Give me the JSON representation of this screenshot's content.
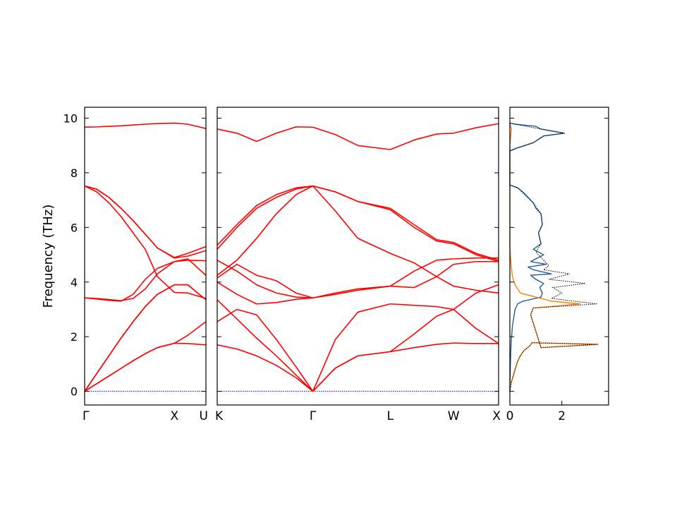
{
  "chart_data": [
    {
      "type": "line",
      "panel": "band-structure-left",
      "ylabel": "Frequency (THz)",
      "ylim": [
        -0.5,
        10.4
      ],
      "yticks": [
        0,
        2,
        4,
        6,
        8,
        10
      ],
      "xticks": [
        {
          "label": "Γ",
          "pos": 0
        },
        {
          "label": "X",
          "pos": 0.74
        },
        {
          "label": "U",
          "pos": 1.0
        }
      ],
      "line_color": "#ff0000",
      "zero_line_color": "#0000cc",
      "series": [
        {
          "x": [
            0,
            0.1,
            0.2,
            0.3,
            0.4,
            0.5,
            0.6,
            0.74,
            0.85,
            1.0
          ],
          "y": [
            0,
            0.28,
            0.56,
            0.84,
            1.12,
            1.38,
            1.6,
            1.76,
            1.75,
            1.7
          ]
        },
        {
          "x": [
            0,
            0.1,
            0.2,
            0.3,
            0.4,
            0.5,
            0.6,
            0.74,
            0.85,
            1.0
          ],
          "y": [
            0,
            0.28,
            0.56,
            0.84,
            1.12,
            1.38,
            1.6,
            1.76,
            2.05,
            2.55
          ]
        },
        {
          "x": [
            0,
            0.1,
            0.2,
            0.3,
            0.4,
            0.5,
            0.6,
            0.74,
            0.85,
            1.0
          ],
          "y": [
            0,
            0.65,
            1.3,
            1.95,
            2.55,
            3.1,
            3.55,
            3.9,
            3.9,
            3.35
          ]
        },
        {
          "x": [
            0,
            0.1,
            0.2,
            0.3,
            0.4,
            0.5,
            0.6,
            0.74,
            0.85,
            1.0
          ],
          "y": [
            0,
            0.65,
            1.3,
            1.95,
            2.55,
            3.1,
            3.55,
            3.9,
            3.9,
            3.35
          ]
        },
        {
          "x": [
            0,
            0.1,
            0.2,
            0.3,
            0.4,
            0.5,
            0.6,
            0.74,
            0.85,
            1.0
          ],
          "y": [
            3.42,
            3.38,
            3.33,
            3.3,
            3.55,
            4.1,
            4.5,
            4.75,
            4.8,
            4.78
          ]
        },
        {
          "x": [
            0,
            0.1,
            0.2,
            0.3,
            0.4,
            0.5,
            0.6,
            0.74,
            0.85,
            1.0
          ],
          "y": [
            3.42,
            3.4,
            3.36,
            3.32,
            3.4,
            3.75,
            4.3,
            4.75,
            4.85,
            4.25
          ]
        },
        {
          "x": [
            0,
            0.1,
            0.2,
            0.3,
            0.4,
            0.5,
            0.6,
            0.74,
            0.85,
            1.0
          ],
          "y": [
            7.52,
            7.3,
            6.9,
            6.4,
            5.8,
            5.2,
            4.2,
            3.62,
            3.6,
            3.4
          ]
        },
        {
          "x": [
            0,
            0.1,
            0.2,
            0.3,
            0.4,
            0.5,
            0.6,
            0.74,
            0.85,
            1.0
          ],
          "y": [
            7.52,
            7.4,
            7.1,
            6.7,
            6.25,
            5.75,
            5.25,
            4.9,
            5.05,
            5.3
          ]
        },
        {
          "x": [
            0,
            0.1,
            0.2,
            0.3,
            0.4,
            0.5,
            0.6,
            0.74,
            0.85,
            1.0
          ],
          "y": [
            7.52,
            7.4,
            7.1,
            6.7,
            6.25,
            5.75,
            5.25,
            4.88,
            4.95,
            5.15
          ]
        },
        {
          "x": [
            0,
            0.1,
            0.2,
            0.3,
            0.4,
            0.5,
            0.6,
            0.74,
            0.85,
            1.0
          ],
          "y": [
            9.67,
            9.68,
            9.7,
            9.72,
            9.75,
            9.78,
            9.8,
            9.82,
            9.78,
            9.62
          ]
        }
      ]
    },
    {
      "type": "line",
      "panel": "band-structure-right",
      "ylim": [
        -0.5,
        10.4
      ],
      "xticks": [
        {
          "label": "K",
          "pos": 0
        },
        {
          "label": "Γ",
          "pos": 0.34
        },
        {
          "label": "L",
          "pos": 0.615
        },
        {
          "label": "W",
          "pos": 0.84
        },
        {
          "label": "X",
          "pos": 1.0
        }
      ],
      "line_color": "#ff0000",
      "zero_line_color": "#0000cc",
      "series": [
        {
          "x": [
            0,
            0.07,
            0.14,
            0.21,
            0.28,
            0.34
          ],
          "y": [
            1.7,
            1.55,
            1.3,
            0.95,
            0.5,
            0
          ]
        },
        {
          "x": [
            0,
            0.07,
            0.14,
            0.21,
            0.28,
            0.34
          ],
          "y": [
            2.55,
            3.0,
            2.8,
            1.9,
            0.9,
            0
          ]
        },
        {
          "x": [
            0,
            0.07,
            0.14,
            0.21,
            0.28,
            0.34
          ],
          "y": [
            3.35,
            2.65,
            1.95,
            1.3,
            0.6,
            0
          ]
        },
        {
          "x": [
            0,
            0.07,
            0.14,
            0.21,
            0.28,
            0.34
          ],
          "y": [
            4.0,
            3.55,
            3.2,
            3.25,
            3.37,
            3.42
          ]
        },
        {
          "x": [
            0,
            0.07,
            0.14,
            0.21,
            0.28,
            0.34
          ],
          "y": [
            4.8,
            4.4,
            3.9,
            3.6,
            3.45,
            3.42
          ]
        },
        {
          "x": [
            0,
            0.07,
            0.14,
            0.21,
            0.28,
            0.34
          ],
          "y": [
            4.25,
            4.8,
            5.6,
            6.5,
            7.2,
            7.52
          ]
        },
        {
          "x": [
            0,
            0.07,
            0.14,
            0.21,
            0.28,
            0.34
          ],
          "y": [
            5.2,
            6.0,
            6.7,
            7.1,
            7.4,
            7.52
          ]
        },
        {
          "x": [
            0,
            0.07,
            0.14,
            0.21,
            0.28,
            0.34
          ],
          "y": [
            5.35,
            6.1,
            6.8,
            7.2,
            7.45,
            7.52
          ]
        },
        {
          "x": [
            0,
            0.07,
            0.14,
            0.21,
            0.28,
            0.34
          ],
          "y": [
            4.15,
            4.65,
            4.25,
            4.05,
            3.6,
            3.42
          ]
        },
        {
          "x": [
            0,
            0.07,
            0.14,
            0.21,
            0.28,
            0.34
          ],
          "y": [
            9.6,
            9.45,
            9.15,
            9.45,
            9.68,
            9.67
          ]
        },
        {
          "x": [
            0.34,
            0.42,
            0.5,
            0.615
          ],
          "y": [
            0,
            0.85,
            1.3,
            1.45
          ]
        },
        {
          "x": [
            0.34,
            0.42,
            0.5,
            0.615
          ],
          "y": [
            0,
            0.85,
            1.3,
            1.45
          ]
        },
        {
          "x": [
            0.34,
            0.42,
            0.5,
            0.615
          ],
          "y": [
            0,
            1.9,
            2.9,
            3.2
          ]
        },
        {
          "x": [
            0.34,
            0.42,
            0.5,
            0.615
          ],
          "y": [
            3.42,
            3.55,
            3.7,
            3.85
          ]
        },
        {
          "x": [
            0.34,
            0.42,
            0.5,
            0.615
          ],
          "y": [
            3.42,
            3.6,
            3.75,
            3.85
          ]
        },
        {
          "x": [
            0.34,
            0.42,
            0.5,
            0.615
          ],
          "y": [
            7.52,
            6.6,
            5.6,
            5.05
          ]
        },
        {
          "x": [
            0.34,
            0.42,
            0.5,
            0.615
          ],
          "y": [
            7.52,
            7.3,
            6.95,
            6.65
          ]
        },
        {
          "x": [
            0.34,
            0.42,
            0.5,
            0.615
          ],
          "y": [
            7.52,
            7.3,
            6.95,
            6.7
          ]
        },
        {
          "x": [
            0.34,
            0.42,
            0.5,
            0.615
          ],
          "y": [
            9.67,
            9.4,
            9.0,
            8.85
          ]
        },
        {
          "x": [
            0.615,
            0.7,
            0.78,
            0.84
          ],
          "y": [
            1.45,
            1.6,
            1.72,
            1.77
          ]
        },
        {
          "x": [
            0.615,
            0.7,
            0.78,
            0.84
          ],
          "y": [
            1.45,
            2.1,
            2.75,
            3.0
          ]
        },
        {
          "x": [
            0.615,
            0.7,
            0.78,
            0.84
          ],
          "y": [
            3.2,
            3.15,
            3.1,
            3.0
          ]
        },
        {
          "x": [
            0.615,
            0.7,
            0.78,
            0.84
          ],
          "y": [
            3.85,
            3.8,
            4.2,
            4.65
          ]
        },
        {
          "x": [
            0.615,
            0.7,
            0.78,
            0.84
          ],
          "y": [
            3.85,
            4.4,
            4.8,
            4.85
          ]
        },
        {
          "x": [
            0.615,
            0.7,
            0.78,
            0.84
          ],
          "y": [
            5.05,
            4.7,
            4.2,
            3.85
          ]
        },
        {
          "x": [
            0.615,
            0.7,
            0.78,
            0.84
          ],
          "y": [
            6.65,
            6.0,
            5.5,
            5.4
          ]
        },
        {
          "x": [
            0.615,
            0.7,
            0.78,
            0.84
          ],
          "y": [
            6.7,
            6.1,
            5.55,
            5.45
          ]
        },
        {
          "x": [
            0.615,
            0.7,
            0.78,
            0.84
          ],
          "y": [
            8.85,
            9.2,
            9.42,
            9.45
          ]
        },
        {
          "x": [
            0.84,
            0.92,
            1.0
          ],
          "y": [
            1.77,
            1.75,
            1.75
          ]
        },
        {
          "x": [
            0.84,
            0.92,
            1.0
          ],
          "y": [
            3.0,
            2.3,
            1.75
          ]
        },
        {
          "x": [
            0.84,
            0.92,
            1.0
          ],
          "y": [
            3.0,
            3.6,
            3.9
          ]
        },
        {
          "x": [
            0.84,
            0.92,
            1.0
          ],
          "y": [
            4.65,
            4.75,
            4.75
          ]
        },
        {
          "x": [
            0.84,
            0.92,
            1.0
          ],
          "y": [
            4.85,
            4.88,
            4.88
          ]
        },
        {
          "x": [
            0.84,
            0.92,
            1.0
          ],
          "y": [
            3.85,
            3.7,
            3.6
          ]
        },
        {
          "x": [
            0.84,
            0.92,
            1.0
          ],
          "y": [
            5.4,
            5.0,
            4.75
          ]
        },
        {
          "x": [
            0.84,
            0.92,
            1.0
          ],
          "y": [
            5.45,
            5.05,
            4.8
          ]
        },
        {
          "x": [
            0.84,
            0.92,
            1.0
          ],
          "y": [
            9.45,
            9.65,
            9.8
          ]
        }
      ]
    },
    {
      "type": "line",
      "panel": "density-of-states",
      "ylim": [
        -0.5,
        10.4
      ],
      "xlim": [
        0,
        3.8
      ],
      "xticks": [
        {
          "label": "0",
          "pos": 0
        },
        {
          "label": "2",
          "pos": 2
        }
      ],
      "series": [
        {
          "color": "#1f5f99",
          "x": [
            0,
            0.02,
            0.05,
            0.1,
            0.15,
            0.2,
            0.3,
            0.5,
            0.75,
            1.2,
            1.25,
            1.15,
            1.3,
            1.0,
            0.8,
            1.6,
            0.9,
            0.7,
            1.4,
            0.8,
            1.1,
            1.3,
            0.9,
            1.2,
            1.1,
            1.25,
            1.2,
            1.0,
            0.9,
            0.7,
            0.5,
            0.3,
            0.1,
            0,
            0,
            0.25,
            0.9,
            1.3,
            2.1,
            1.2,
            1.0,
            0.2,
            0
          ],
          "y": [
            0,
            1.0,
            1.8,
            2.4,
            2.7,
            3.0,
            3.2,
            3.3,
            3.35,
            3.45,
            3.6,
            3.8,
            3.95,
            4.1,
            4.25,
            4.3,
            4.45,
            4.55,
            4.65,
            4.75,
            4.9,
            5.0,
            5.2,
            5.4,
            5.8,
            6.1,
            6.5,
            6.7,
            6.9,
            7.1,
            7.3,
            7.45,
            7.52,
            7.55,
            8.8,
            8.9,
            9.1,
            9.35,
            9.45,
            9.6,
            9.7,
            9.78,
            9.82
          ]
        },
        {
          "color": "#ff7f0e",
          "x": [
            0,
            0.12,
            0.2,
            0.3,
            0.4,
            0.55,
            0.75,
            0.85,
            3.4,
            1.2,
            0.8,
            0.9,
            2.7,
            1.6,
            0.4,
            0.2,
            0.1,
            0.05,
            0.02,
            0,
            0,
            0.06,
            0
          ],
          "y": [
            0.2,
            0.5,
            0.8,
            1.1,
            1.3,
            1.5,
            1.65,
            1.78,
            1.72,
            1.6,
            2.8,
            3.05,
            3.2,
            3.3,
            3.6,
            3.9,
            4.2,
            4.6,
            5.0,
            5.3,
            9.0,
            9.6,
            9.8
          ]
        },
        {
          "color": "#000000",
          "x": [
            0,
            0.1,
            0.2,
            0.3,
            0.4,
            0.55,
            0.75,
            0.85,
            3.4,
            1.2,
            0.8,
            0.9,
            3.35,
            1.6,
            2.0,
            1.65,
            2.9,
            1.5,
            2.3,
            1.3,
            1.5,
            1.0,
            1.2,
            1.1,
            1.25,
            1.2,
            0.9,
            0.3,
            0.1,
            0,
            0,
            0.25,
            0.9,
            1.3,
            2.1,
            1.2,
            0.2,
            0
          ],
          "y": [
            0,
            0.5,
            0.8,
            1.1,
            1.3,
            1.5,
            1.65,
            1.78,
            1.72,
            1.6,
            2.8,
            3.05,
            3.2,
            3.4,
            3.6,
            3.8,
            3.95,
            4.1,
            4.3,
            4.45,
            4.6,
            5.1,
            5.4,
            5.8,
            6.1,
            6.5,
            6.9,
            7.45,
            7.52,
            7.55,
            8.8,
            8.9,
            9.1,
            9.35,
            9.45,
            9.6,
            9.78,
            9.82
          ]
        }
      ]
    }
  ]
}
